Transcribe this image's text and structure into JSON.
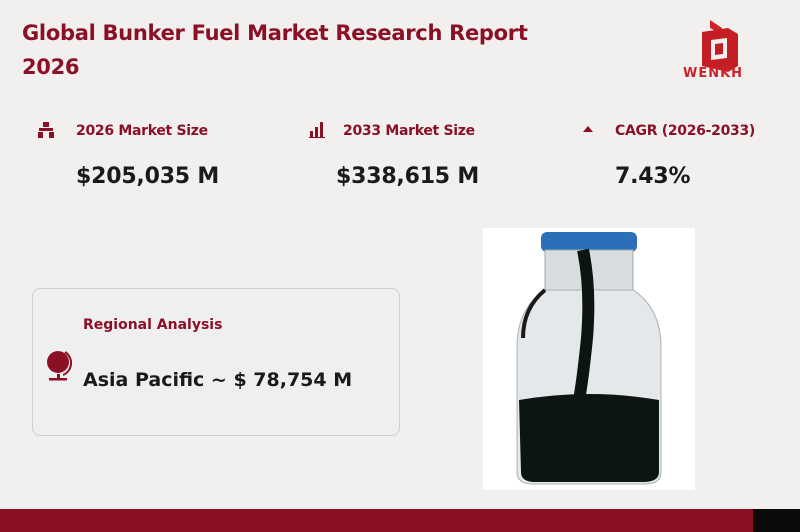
{
  "header": {
    "title": "Global Bunker Fuel Market Research Report 2026"
  },
  "logo": {
    "text": "WENKH"
  },
  "stats": [
    {
      "icon": "hierarchy-icon",
      "label": "2026 Market Size",
      "value": "$205,035  M"
    },
    {
      "icon": "bar-chart-icon",
      "label": "2033 Market Size",
      "value": "$338,615  M"
    },
    {
      "icon": "triangle-up-icon",
      "label": "CAGR (2026-2033)",
      "value": "7.43%"
    }
  ],
  "regional": {
    "icon": "globe-icon",
    "label": "Regional Analysis",
    "value": "Asia Pacific ~ $ 78,754 M"
  },
  "colors": {
    "accent": "#8b1026",
    "logo": "#d0202a",
    "background": "#f1f0ee"
  }
}
